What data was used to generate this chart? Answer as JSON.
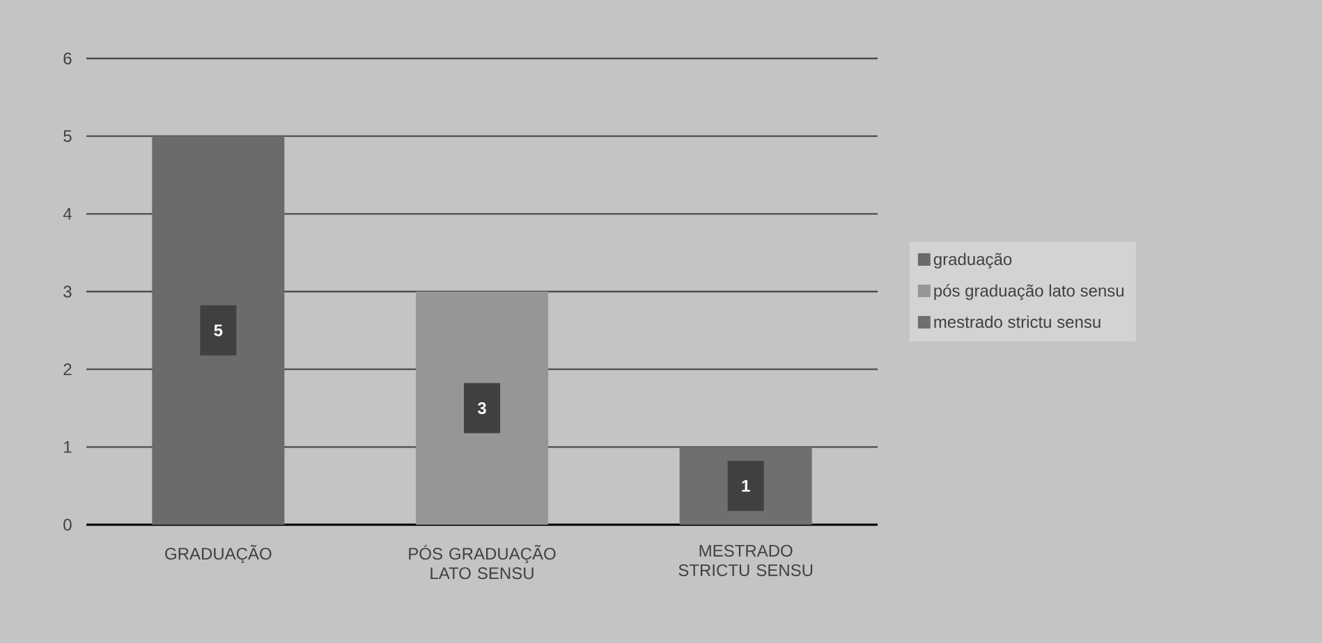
{
  "chart_data": {
    "type": "bar",
    "categories": [
      "GRADUAÇÃO",
      "PÓS GRADUAÇÃO LATO SENSU",
      "MESTRADO STRICTU SENSU"
    ],
    "series": [
      {
        "name": "graduação",
        "color": "#6b6b6b",
        "values": [
          5,
          null,
          null
        ]
      },
      {
        "name": "pós graduação lato sensu",
        "color": "#969696",
        "values": [
          null,
          3,
          null
        ]
      },
      {
        "name": "mestrado strictu sensu",
        "color": "#6f6f6f",
        "values": [
          null,
          null,
          1
        ]
      }
    ],
    "ylim": [
      0,
      6
    ],
    "yticks": [
      0,
      1,
      2,
      3,
      4,
      5,
      6
    ],
    "grid": "y",
    "legend": "right",
    "data_labels": true
  }
}
